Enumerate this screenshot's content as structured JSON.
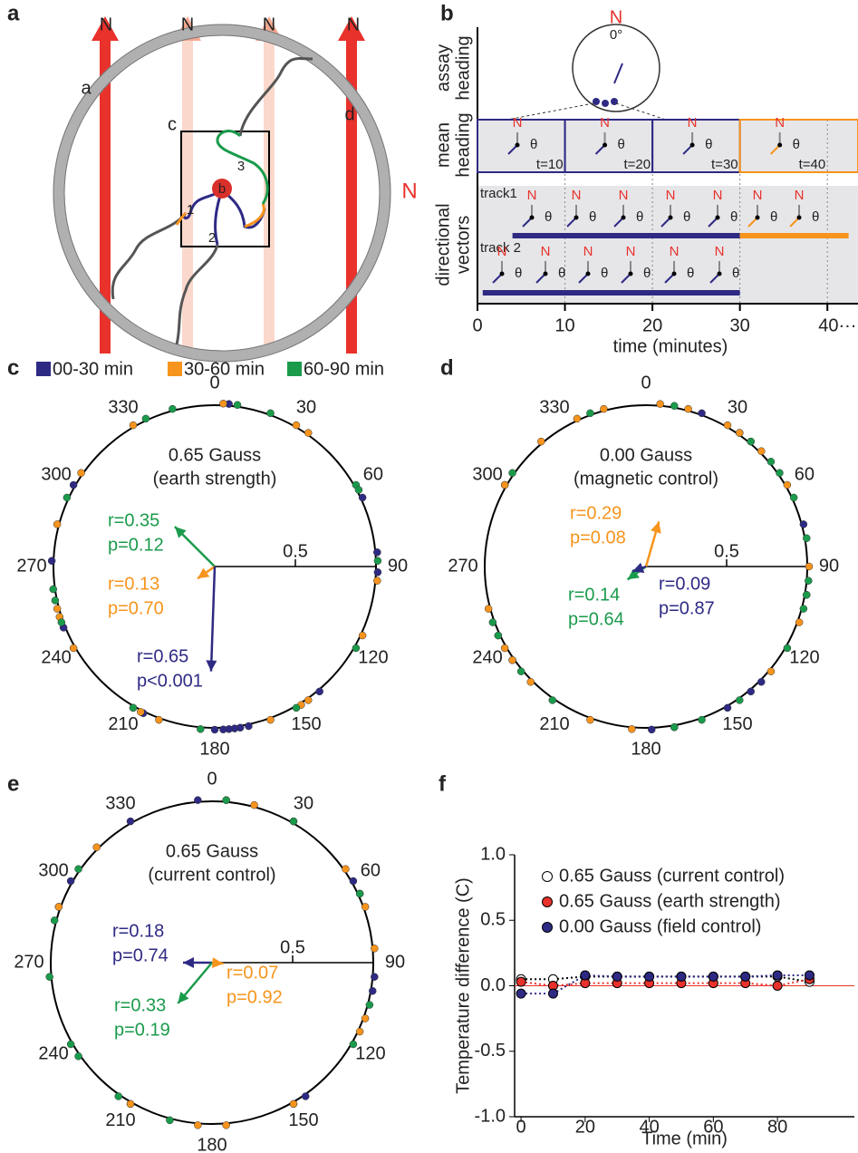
{
  "panel_a": {
    "label": "a",
    "north": [
      "N",
      "N",
      "N",
      "N"
    ],
    "field_label": "N",
    "arena_labels": [
      "a",
      "c",
      "d"
    ],
    "tracks": [
      "1",
      "2",
      "3"
    ],
    "start": "b"
  },
  "panel_b": {
    "label": "b",
    "compass_north": "N",
    "compass_zero": "0°",
    "row_labels": [
      [
        "assay",
        "heading"
      ],
      [
        "mean",
        "heading"
      ],
      [
        "directional",
        "vectors"
      ]
    ],
    "windows": [
      "t=10",
      "t=20",
      "t=30",
      "t=40"
    ],
    "tracks": [
      "track1",
      "track 2"
    ],
    "north": "N",
    "theta": "θ",
    "xlabel": "time (minutes)",
    "xlim": [
      0,
      43.5
    ],
    "xticks": [
      0,
      10,
      20,
      30,
      {
        "value": 40,
        "label": "40···"
      }
    ]
  },
  "legend": {
    "label": "c",
    "items": [
      {
        "name": "00-30 min",
        "color": "#2e2a84"
      },
      {
        "name": "30-60 min",
        "color": "#f7941d"
      },
      {
        "name": "60-90 min",
        "color": "#1a9b4b"
      }
    ]
  },
  "chart_data": [
    {
      "type": "polar",
      "label": "c",
      "title": [
        "0.65 Gauss",
        "(earth strength)"
      ],
      "angle_ticks": [
        0,
        30,
        60,
        90,
        120,
        150,
        180,
        210,
        240,
        270,
        300,
        330
      ],
      "rlim": [
        0,
        1
      ],
      "rticks": [
        0.5
      ],
      "series": [
        {
          "color": "#2e2a84",
          "angles": [
            5,
            65,
            85,
            92,
            140,
            168,
            171,
            173,
            175,
            177,
            180,
            206,
            210,
            248,
            272,
            300
          ]
        },
        {
          "color": "#f7941d",
          "angles": [
            3,
            30,
            35,
            95,
            115,
            145,
            148,
            160,
            200,
            207,
            240,
            252,
            255,
            285,
            305,
            330
          ]
        },
        {
          "color": "#1a9b4b",
          "angles": [
            8,
            20,
            60,
            62,
            88,
            120,
            150,
            185,
            210,
            250,
            258,
            262,
            295,
            335,
            345
          ]
        }
      ],
      "vectors": [
        {
          "color": "#1a9b4b",
          "angle": 315,
          "r": 0.35,
          "labels": [
            "r=0.35",
            "p=0.12"
          ]
        },
        {
          "color": "#f7941d",
          "angle": 235,
          "r": 0.13,
          "labels": [
            "r=0.13",
            "p=0.70"
          ]
        },
        {
          "color": "#2e2a84",
          "angle": 182,
          "r": 0.65,
          "labels": [
            "r=0.65",
            "p<0.001"
          ]
        }
      ]
    },
    {
      "type": "polar",
      "label": "d",
      "title": [
        "0.00 Gauss",
        "(magnetic control)"
      ],
      "angle_ticks": [
        0,
        30,
        60,
        90,
        120,
        150,
        180,
        210,
        240,
        270,
        300,
        330
      ],
      "rlim": [
        0,
        1
      ],
      "rticks": [
        0.5
      ],
      "series": [
        {
          "color": "#2e2a84",
          "angles": [
            20,
            35,
            75,
            135,
            140,
            150,
            170,
            178,
            235,
            300
          ]
        },
        {
          "color": "#f7941d",
          "angles": [
            5,
            15,
            30,
            35,
            40,
            45,
            60,
            90,
            100,
            110,
            130,
            185,
            200,
            225,
            235,
            240,
            245,
            255,
            300,
            320,
            335,
            345
          ]
        },
        {
          "color": "#1a9b4b",
          "angles": [
            10,
            40,
            50,
            55,
            65,
            80,
            95,
            100,
            105,
            120,
            145,
            160,
            170,
            215,
            230,
            245,
            250,
            305,
            340
          ]
        }
      ],
      "vectors": [
        {
          "color": "#f7941d",
          "angle": 16,
          "r": 0.29,
          "labels": [
            "r=0.29",
            "p=0.08"
          ]
        },
        {
          "color": "#1a9b4b",
          "angle": 235,
          "r": 0.14,
          "labels": [
            "r=0.14",
            "p=0.64"
          ]
        },
        {
          "color": "#2e2a84",
          "angle": 250,
          "r": 0.09,
          "labels": [
            "r=0.09",
            "p=0.87"
          ]
        }
      ]
    },
    {
      "type": "polar",
      "label": "e",
      "title": [
        "0.65 Gauss",
        "(current control)"
      ],
      "angle_ticks": [
        0,
        30,
        60,
        90,
        120,
        150,
        180,
        210,
        240,
        270,
        300,
        330
      ],
      "rlim": [
        0,
        1
      ],
      "rticks": [
        0.5
      ],
      "series": [
        {
          "color": "#2e2a84",
          "angles": [
            60,
            65,
            95,
            100,
            145,
            150,
            210,
            290,
            300,
            330,
            355
          ]
        },
        {
          "color": "#f7941d",
          "angles": [
            5,
            15,
            30,
            55,
            70,
            85,
            110,
            115,
            150,
            175,
            185,
            210,
            290,
            315
          ]
        },
        {
          "color": "#1a9b4b",
          "angles": [
            5,
            30,
            65,
            105,
            120,
            195,
            215,
            235,
            240,
            265,
            285,
            305
          ]
        }
      ],
      "vectors": [
        {
          "color": "#2e2a84",
          "angle": 270,
          "r": 0.18,
          "labels": [
            "r=0.18",
            "p=0.74"
          ]
        },
        {
          "color": "#f7941d",
          "angle": 95,
          "r": 0.07,
          "labels": [
            "r=0.07",
            "p=0.92"
          ]
        },
        {
          "color": "#1a9b4b",
          "angle": 220,
          "r": 0.33,
          "labels": [
            "r=0.33",
            "p=0.19"
          ]
        }
      ]
    },
    {
      "type": "line",
      "label": "f",
      "xlabel": "Time (min)",
      "ylabel": "Temperature difference (C)",
      "x": [
        0,
        10,
        20,
        30,
        40,
        50,
        60,
        70,
        80,
        90
      ],
      "xlim": [
        -2,
        104
      ],
      "xticks": [
        0,
        20,
        40,
        60,
        80
      ],
      "ylim": [
        -1,
        1
      ],
      "yticks": [
        {
          "value": -1,
          "label": "-1.0"
        },
        {
          "value": -0.5,
          "label": "-0.5"
        },
        {
          "value": 0,
          "label": "0.0"
        },
        {
          "value": 0.5,
          "label": "0.5"
        },
        {
          "value": 1,
          "label": "1.0"
        }
      ],
      "series": [
        {
          "name": "0.65 Gauss (current control)",
          "color": "#ffffff",
          "values": [
            0.05,
            0.05,
            0.07,
            0.07,
            0.07,
            0.07,
            0.07,
            0.07,
            0.07,
            0.03
          ]
        },
        {
          "name": "0.65 Gauss (earth strength)",
          "color": "#e8322b",
          "values": [
            0.03,
            0.0,
            0.02,
            0.02,
            0.02,
            0.02,
            0.02,
            0.02,
            0.0,
            0.05
          ]
        },
        {
          "name": "0.00 Gauss (field control)",
          "color": "#2e2a84",
          "values": [
            -0.06,
            -0.06,
            0.08,
            0.07,
            0.07,
            0.07,
            0.07,
            0.07,
            0.08,
            0.08
          ]
        }
      ]
    }
  ]
}
